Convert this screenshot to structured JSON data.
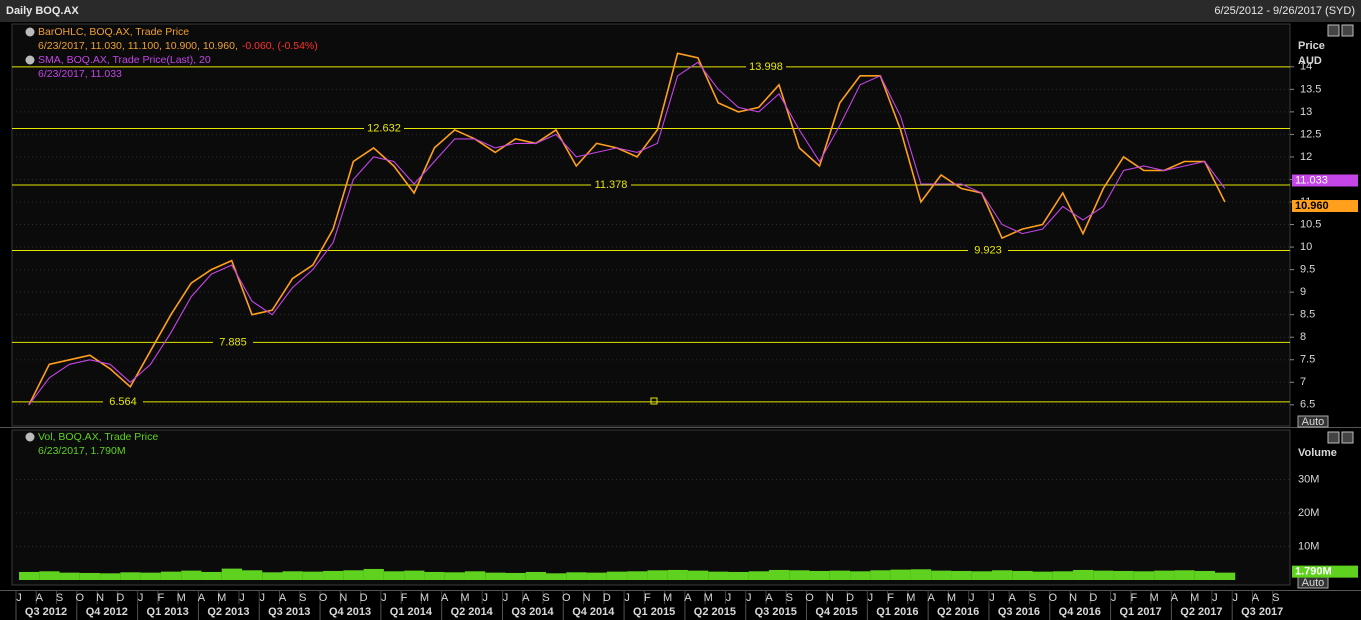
{
  "header": {
    "title": "Daily BOQ.AX",
    "range": "6/25/2012 - 9/26/2017 (SYD)"
  },
  "chart_data": [
    {
      "type": "line",
      "y_label": "Price",
      "y_unit": "AUD",
      "auto_button": "Auto",
      "categories": [
        "J",
        "A",
        "S",
        "O",
        "N",
        "D",
        "J",
        "F",
        "M",
        "A",
        "M",
        "J",
        "J",
        "A",
        "S",
        "O",
        "N",
        "D",
        "J",
        "F",
        "M",
        "A",
        "M",
        "J",
        "J",
        "A",
        "S",
        "O",
        "N",
        "D",
        "J",
        "F",
        "M",
        "A",
        "M",
        "J",
        "J",
        "A",
        "S",
        "O",
        "N",
        "D",
        "J",
        "F",
        "M",
        "A",
        "M",
        "J",
        "J",
        "A",
        "S",
        "O",
        "N",
        "D",
        "J",
        "F",
        "M",
        "A",
        "M",
        "J",
        "J",
        "A",
        "S"
      ],
      "quarters": [
        "Q3 2012",
        "Q4 2012",
        "Q1 2013",
        "Q2 2013",
        "Q3 2013",
        "Q4 2013",
        "Q1 2014",
        "Q2 2014",
        "Q3 2014",
        "Q4 2014",
        "Q1 2015",
        "Q2 2015",
        "Q3 2015",
        "Q4 2015",
        "Q1 2016",
        "Q2 2016",
        "Q3 2016",
        "Q4 2016",
        "Q1 2017",
        "Q2 2017",
        "Q3 2017"
      ],
      "ylim": [
        6.03,
        14.95
      ],
      "yticks": [
        6.5,
        7,
        7.5,
        8,
        8.5,
        9,
        9.5,
        10,
        10.5,
        11,
        11.5,
        12,
        12.5,
        13,
        13.5,
        14
      ],
      "grid": true,
      "levels": [
        13.998,
        12.632,
        11.378,
        9.923,
        7.885,
        6.564
      ],
      "level_color": "#e6e600",
      "series": [
        {
          "name": "BarOHLC, BOQ.AX, Trade Price",
          "details": "6/23/2017, 11.030, 11.100, 10.900, 10.960,",
          "change": "-0.060, (-0.54%)",
          "last_label": "10.960",
          "color": "#ff9f1c",
          "values": [
            6.5,
            7.4,
            7.5,
            7.6,
            7.3,
            6.9,
            7.7,
            8.5,
            9.2,
            9.5,
            9.7,
            8.5,
            8.6,
            9.3,
            9.6,
            10.4,
            11.9,
            12.2,
            11.8,
            11.2,
            12.2,
            12.6,
            12.4,
            12.1,
            12.4,
            12.3,
            12.6,
            11.8,
            12.3,
            12.2,
            12.0,
            12.6,
            14.3,
            14.2,
            13.2,
            13.0,
            13.1,
            13.6,
            12.2,
            11.8,
            13.2,
            13.8,
            13.8,
            12.6,
            11.0,
            11.6,
            11.3,
            11.2,
            10.2,
            10.4,
            10.5,
            11.2,
            10.3,
            11.3,
            12.0,
            11.7,
            11.7,
            11.9,
            11.9,
            11.0,
            null,
            null,
            null
          ]
        },
        {
          "name": "SMA, BOQ.AX, Trade Price(Last), 20",
          "details": "6/23/2017, 11.033",
          "last_label": "11.033",
          "color": "#c445e8",
          "values": [
            6.5,
            7.1,
            7.4,
            7.5,
            7.4,
            7.0,
            7.4,
            8.1,
            8.9,
            9.4,
            9.6,
            8.8,
            8.5,
            9.1,
            9.5,
            10.1,
            11.5,
            12.0,
            11.9,
            11.4,
            11.9,
            12.4,
            12.4,
            12.2,
            12.3,
            12.3,
            12.5,
            12.0,
            12.1,
            12.2,
            12.1,
            12.3,
            13.8,
            14.1,
            13.5,
            13.1,
            13.0,
            13.4,
            12.6,
            11.9,
            12.7,
            13.6,
            13.8,
            12.9,
            11.4,
            11.4,
            11.4,
            11.2,
            10.5,
            10.3,
            10.4,
            10.9,
            10.6,
            10.9,
            11.7,
            11.8,
            11.7,
            11.8,
            11.9,
            11.3,
            null,
            null,
            null
          ]
        }
      ]
    },
    {
      "type": "bar",
      "y_label": "Volume",
      "auto_button": "Auto",
      "ylim": [
        0,
        43.6
      ],
      "yticks": [
        {
          "value": 10,
          "label": "10M"
        },
        {
          "value": 20,
          "label": "20M"
        },
        {
          "value": 30,
          "label": "30M"
        }
      ],
      "series": [
        {
          "name": "Vol, BOQ.AX, Trade Price",
          "details": "6/23/2017, 1.790M",
          "last_label": "1.790M",
          "color": "#5fd21f",
          "values": [
            2.4,
            2.6,
            2.2,
            2.1,
            2.0,
            2.3,
            2.2,
            2.5,
            2.8,
            2.4,
            3.4,
            2.9,
            2.3,
            2.6,
            2.5,
            2.7,
            2.9,
            3.3,
            2.6,
            2.8,
            2.4,
            2.3,
            2.6,
            2.2,
            2.1,
            2.4,
            2.0,
            2.3,
            2.2,
            2.5,
            2.6,
            2.9,
            3.0,
            2.8,
            2.5,
            2.4,
            2.6,
            3.0,
            2.9,
            2.7,
            2.8,
            2.6,
            2.9,
            3.1,
            3.2,
            2.8,
            2.7,
            2.6,
            2.9,
            2.7,
            2.5,
            2.6,
            3.0,
            2.8,
            2.7,
            2.6,
            2.8,
            2.9,
            2.7,
            2.2,
            null,
            null,
            null
          ]
        }
      ]
    }
  ]
}
